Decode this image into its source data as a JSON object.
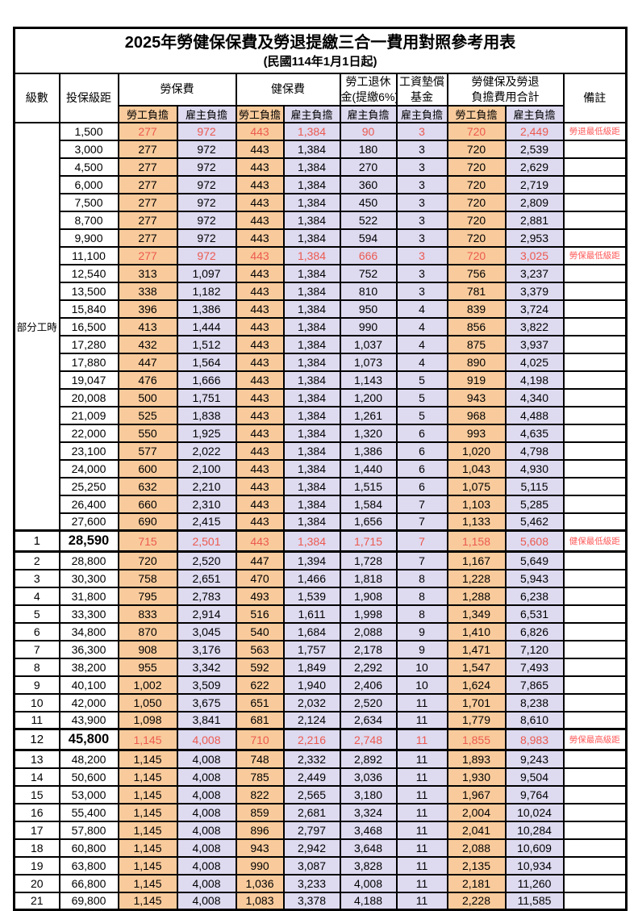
{
  "title": "2025年勞健保保費及勞退提繳三合一費用對照參考用表",
  "subtitle": "(民國114年1月1日起)",
  "header": {
    "col_level": "級數",
    "col_bracket": "投保級距",
    "group_labor": "勞保費",
    "group_health": "健保費",
    "group_pension_l1": "勞工退休",
    "group_pension_l2": "金(提繳6%)",
    "group_wagefund_l1": "工資墊償",
    "group_wagefund_l2": "基金",
    "group_total_l1": "勞健保及勞退",
    "group_total_l2": "負擔費用合計",
    "col_remark": "備註",
    "sub_employee": "勞工負擔",
    "sub_employer": "雇主負擔"
  },
  "colors": {
    "employee_col_bg": "#F9CB9C",
    "employer_col_bg": "#DEDAF0",
    "highlight_text": "#EC5A50",
    "remark_text": "#FF5A5A",
    "border": "#000000"
  },
  "table": {
    "part_time_label": "部分工時",
    "rows": [
      {
        "level": "",
        "bracket": "1,500",
        "values": [
          "277",
          "972",
          "443",
          "1,384",
          "90",
          "3",
          "720",
          "2,449"
        ],
        "remark": "勞退最低級距",
        "highlight": true
      },
      {
        "level": "",
        "bracket": "3,000",
        "values": [
          "277",
          "972",
          "443",
          "1,384",
          "180",
          "3",
          "720",
          "2,539"
        ],
        "remark": ""
      },
      {
        "level": "",
        "bracket": "4,500",
        "values": [
          "277",
          "972",
          "443",
          "1,384",
          "270",
          "3",
          "720",
          "2,629"
        ],
        "remark": ""
      },
      {
        "level": "",
        "bracket": "6,000",
        "values": [
          "277",
          "972",
          "443",
          "1,384",
          "360",
          "3",
          "720",
          "2,719"
        ],
        "remark": ""
      },
      {
        "level": "",
        "bracket": "7,500",
        "values": [
          "277",
          "972",
          "443",
          "1,384",
          "450",
          "3",
          "720",
          "2,809"
        ],
        "remark": ""
      },
      {
        "level": "",
        "bracket": "8,700",
        "values": [
          "277",
          "972",
          "443",
          "1,384",
          "522",
          "3",
          "720",
          "2,881"
        ],
        "remark": ""
      },
      {
        "level": "",
        "bracket": "9,900",
        "values": [
          "277",
          "972",
          "443",
          "1,384",
          "594",
          "3",
          "720",
          "2,953"
        ],
        "remark": ""
      },
      {
        "level": "",
        "bracket": "11,100",
        "values": [
          "277",
          "972",
          "443",
          "1,384",
          "666",
          "3",
          "720",
          "3,025"
        ],
        "remark": "勞保最低級距",
        "highlight": true
      },
      {
        "level": "",
        "bracket": "12,540",
        "values": [
          "313",
          "1,097",
          "443",
          "1,384",
          "752",
          "3",
          "756",
          "3,237"
        ],
        "remark": ""
      },
      {
        "level": "",
        "bracket": "13,500",
        "values": [
          "338",
          "1,182",
          "443",
          "1,384",
          "810",
          "3",
          "781",
          "3,379"
        ],
        "remark": ""
      },
      {
        "level": "",
        "bracket": "15,840",
        "values": [
          "396",
          "1,386",
          "443",
          "1,384",
          "950",
          "4",
          "839",
          "3,724"
        ],
        "remark": ""
      },
      {
        "level": "",
        "bracket": "16,500",
        "values": [
          "413",
          "1,444",
          "443",
          "1,384",
          "990",
          "4",
          "856",
          "3,822"
        ],
        "remark": ""
      },
      {
        "level": "",
        "bracket": "17,280",
        "values": [
          "432",
          "1,512",
          "443",
          "1,384",
          "1,037",
          "4",
          "875",
          "3,937"
        ],
        "remark": ""
      },
      {
        "level": "",
        "bracket": "17,880",
        "values": [
          "447",
          "1,564",
          "443",
          "1,384",
          "1,073",
          "4",
          "890",
          "4,025"
        ],
        "remark": ""
      },
      {
        "level": "",
        "bracket": "19,047",
        "values": [
          "476",
          "1,666",
          "443",
          "1,384",
          "1,143",
          "5",
          "919",
          "4,198"
        ],
        "remark": ""
      },
      {
        "level": "",
        "bracket": "20,008",
        "values": [
          "500",
          "1,751",
          "443",
          "1,384",
          "1,200",
          "5",
          "943",
          "4,340"
        ],
        "remark": ""
      },
      {
        "level": "",
        "bracket": "21,009",
        "values": [
          "525",
          "1,838",
          "443",
          "1,384",
          "1,261",
          "5",
          "968",
          "4,488"
        ],
        "remark": ""
      },
      {
        "level": "",
        "bracket": "22,000",
        "values": [
          "550",
          "1,925",
          "443",
          "1,384",
          "1,320",
          "6",
          "993",
          "4,635"
        ],
        "remark": ""
      },
      {
        "level": "",
        "bracket": "23,100",
        "values": [
          "577",
          "2,022",
          "443",
          "1,384",
          "1,386",
          "6",
          "1,020",
          "4,798"
        ],
        "remark": ""
      },
      {
        "level": "",
        "bracket": "24,000",
        "values": [
          "600",
          "2,100",
          "443",
          "1,384",
          "1,440",
          "6",
          "1,043",
          "4,930"
        ],
        "remark": ""
      },
      {
        "level": "",
        "bracket": "25,250",
        "values": [
          "632",
          "2,210",
          "443",
          "1,384",
          "1,515",
          "6",
          "1,075",
          "5,115"
        ],
        "remark": ""
      },
      {
        "level": "",
        "bracket": "26,400",
        "values": [
          "660",
          "2,310",
          "443",
          "1,384",
          "1,584",
          "7",
          "1,103",
          "5,285"
        ],
        "remark": ""
      },
      {
        "level": "",
        "bracket": "27,600",
        "values": [
          "690",
          "2,415",
          "443",
          "1,384",
          "1,656",
          "7",
          "1,133",
          "5,462"
        ],
        "remark": ""
      },
      {
        "level": "1",
        "bracket": "28,590",
        "values": [
          "715",
          "2,501",
          "443",
          "1,384",
          "1,715",
          "7",
          "1,158",
          "5,608"
        ],
        "remark": "健保最低級距",
        "highlight": true,
        "big": true
      },
      {
        "level": "2",
        "bracket": "28,800",
        "values": [
          "720",
          "2,520",
          "447",
          "1,394",
          "1,728",
          "7",
          "1,167",
          "5,649"
        ],
        "remark": ""
      },
      {
        "level": "3",
        "bracket": "30,300",
        "values": [
          "758",
          "2,651",
          "470",
          "1,466",
          "1,818",
          "8",
          "1,228",
          "5,943"
        ],
        "remark": ""
      },
      {
        "level": "4",
        "bracket": "31,800",
        "values": [
          "795",
          "2,783",
          "493",
          "1,539",
          "1,908",
          "8",
          "1,288",
          "6,238"
        ],
        "remark": ""
      },
      {
        "level": "5",
        "bracket": "33,300",
        "values": [
          "833",
          "2,914",
          "516",
          "1,611",
          "1,998",
          "8",
          "1,349",
          "6,531"
        ],
        "remark": ""
      },
      {
        "level": "6",
        "bracket": "34,800",
        "values": [
          "870",
          "3,045",
          "540",
          "1,684",
          "2,088",
          "9",
          "1,410",
          "6,826"
        ],
        "remark": ""
      },
      {
        "level": "7",
        "bracket": "36,300",
        "values": [
          "908",
          "3,176",
          "563",
          "1,757",
          "2,178",
          "9",
          "1,471",
          "7,120"
        ],
        "remark": ""
      },
      {
        "level": "8",
        "bracket": "38,200",
        "values": [
          "955",
          "3,342",
          "592",
          "1,849",
          "2,292",
          "10",
          "1,547",
          "7,493"
        ],
        "remark": ""
      },
      {
        "level": "9",
        "bracket": "40,100",
        "values": [
          "1,002",
          "3,509",
          "622",
          "1,940",
          "2,406",
          "10",
          "1,624",
          "7,865"
        ],
        "remark": ""
      },
      {
        "level": "10",
        "bracket": "42,000",
        "values": [
          "1,050",
          "3,675",
          "651",
          "2,032",
          "2,520",
          "11",
          "1,701",
          "8,238"
        ],
        "remark": ""
      },
      {
        "level": "11",
        "bracket": "43,900",
        "values": [
          "1,098",
          "3,841",
          "681",
          "2,124",
          "2,634",
          "11",
          "1,779",
          "8,610"
        ],
        "remark": ""
      },
      {
        "level": "12",
        "bracket": "45,800",
        "values": [
          "1,145",
          "4,008",
          "710",
          "2,216",
          "2,748",
          "11",
          "1,855",
          "8,983"
        ],
        "remark": "勞保最高級距",
        "highlight": true,
        "big": true
      },
      {
        "level": "13",
        "bracket": "48,200",
        "values": [
          "1,145",
          "4,008",
          "748",
          "2,332",
          "2,892",
          "11",
          "1,893",
          "9,243"
        ],
        "remark": ""
      },
      {
        "level": "14",
        "bracket": "50,600",
        "values": [
          "1,145",
          "4,008",
          "785",
          "2,449",
          "3,036",
          "11",
          "1,930",
          "9,504"
        ],
        "remark": ""
      },
      {
        "level": "15",
        "bracket": "53,000",
        "values": [
          "1,145",
          "4,008",
          "822",
          "2,565",
          "3,180",
          "11",
          "1,967",
          "9,764"
        ],
        "remark": ""
      },
      {
        "level": "16",
        "bracket": "55,400",
        "values": [
          "1,145",
          "4,008",
          "859",
          "2,681",
          "3,324",
          "11",
          "2,004",
          "10,024"
        ],
        "remark": ""
      },
      {
        "level": "17",
        "bracket": "57,800",
        "values": [
          "1,145",
          "4,008",
          "896",
          "2,797",
          "3,468",
          "11",
          "2,041",
          "10,284"
        ],
        "remark": ""
      },
      {
        "level": "18",
        "bracket": "60,800",
        "values": [
          "1,145",
          "4,008",
          "943",
          "2,942",
          "3,648",
          "11",
          "2,088",
          "10,609"
        ],
        "remark": ""
      },
      {
        "level": "19",
        "bracket": "63,800",
        "values": [
          "1,145",
          "4,008",
          "990",
          "3,087",
          "3,828",
          "11",
          "2,135",
          "10,934"
        ],
        "remark": ""
      },
      {
        "level": "20",
        "bracket": "66,800",
        "values": [
          "1,145",
          "4,008",
          "1,036",
          "3,233",
          "4,008",
          "11",
          "2,181",
          "11,260"
        ],
        "remark": ""
      },
      {
        "level": "21",
        "bracket": "69,800",
        "values": [
          "1,145",
          "4,008",
          "1,083",
          "3,378",
          "4,188",
          "11",
          "2,228",
          "11,585"
        ],
        "remark": ""
      }
    ]
  }
}
